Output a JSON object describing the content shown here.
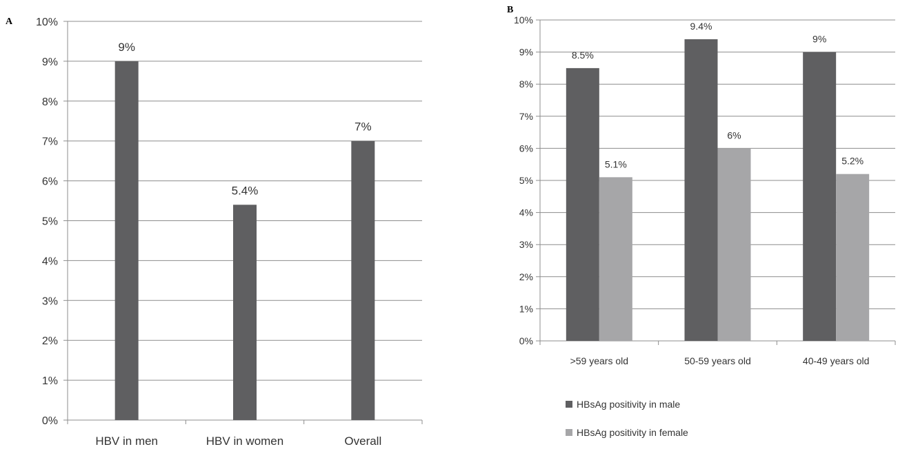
{
  "chart_data": [
    {
      "panel": "A",
      "type": "bar",
      "categories": [
        "HBV in men",
        "HBV in women",
        "Overall"
      ],
      "values": [
        9,
        5.4,
        7
      ],
      "data_labels": [
        "9%",
        "5.4%",
        "7%"
      ],
      "ylim": [
        0,
        10
      ],
      "y_ticks": [
        "0%",
        "1%",
        "2%",
        "3%",
        "4%",
        "5%",
        "6%",
        "7%",
        "8%",
        "9%",
        "10%"
      ],
      "grid": true,
      "colors": {
        "bar": "#5f5f61",
        "grid": "#8c8c8c",
        "axis": "#8c8c8c"
      }
    },
    {
      "panel": "B",
      "type": "bar",
      "categories": [
        ">59 years old",
        "50-59 years old",
        "40-49 years old"
      ],
      "series": [
        {
          "name": "HBsAg positivity in male",
          "values": [
            8.5,
            9.4,
            9
          ],
          "data_labels": [
            "8.5%",
            "9.4%",
            "9%"
          ],
          "color": "#5f5f61"
        },
        {
          "name": "HBsAg positivity in female",
          "values": [
            5.1,
            6,
            5.2
          ],
          "data_labels": [
            "5.1%",
            "6%",
            "5.2%"
          ],
          "color": "#a6a6a8"
        }
      ],
      "ylim": [
        0,
        10
      ],
      "y_ticks": [
        "0%",
        "1%",
        "2%",
        "3%",
        "4%",
        "5%",
        "6%",
        "7%",
        "8%",
        "9%",
        "10%"
      ],
      "grid": true,
      "legend_position": "bottom-left",
      "colors": {
        "grid": "#8c8c8c",
        "axis": "#8c8c8c"
      }
    }
  ]
}
